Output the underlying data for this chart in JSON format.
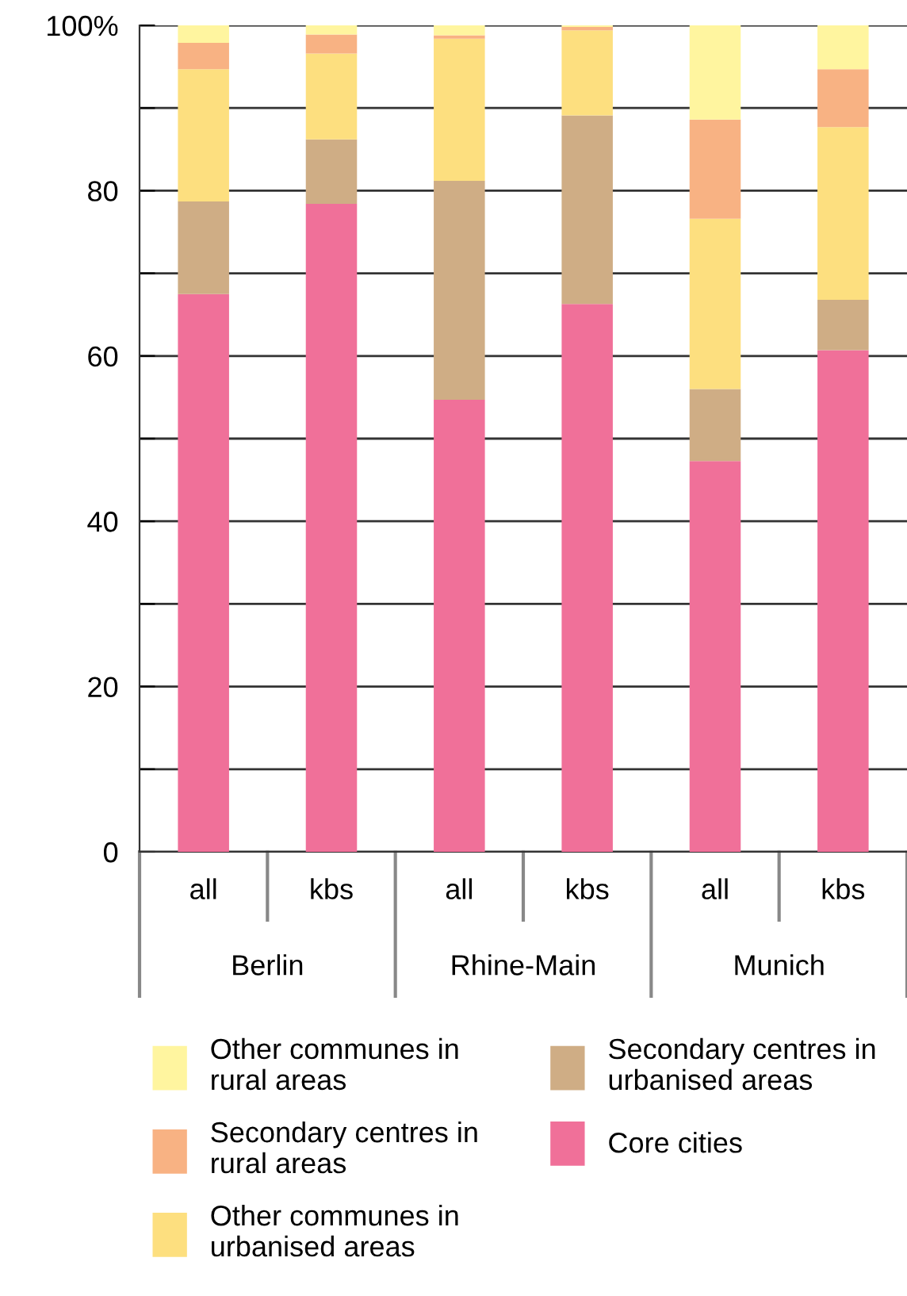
{
  "chart_data": {
    "type": "bar",
    "stacked": true,
    "categories": [
      "all",
      "kbs",
      "all",
      "kbs",
      "all",
      "kbs"
    ],
    "annotations": [
      "Berlin",
      "Rhine-Main",
      "Munich"
    ],
    "series": [
      {
        "name": "Core cities",
        "color": "#f07099",
        "values": [
          67.5,
          78.4,
          54.7,
          66.3,
          47.3,
          60.7
        ]
      },
      {
        "name": "Secondary centres in urbanised areas",
        "color": "#cfad85",
        "values": [
          11.2,
          7.8,
          26.5,
          22.8,
          8.7,
          6.1
        ]
      },
      {
        "name": "Other communes in urbanised areas",
        "color": "#fddf7f",
        "values": [
          16,
          10.4,
          17.2,
          10.3,
          20.6,
          20.9
        ]
      },
      {
        "name": "Secondary centres in rural areas",
        "color": "#f8b283",
        "values": [
          3.2,
          2.3,
          0.4,
          0.4,
          12,
          7
        ]
      },
      {
        "name": "Other communes in rural areas",
        "color": "#fff59f",
        "values": [
          2.1,
          1.1,
          1.2,
          0.2,
          11.4,
          5.3
        ]
      }
    ],
    "ylim": [
      0,
      100
    ],
    "yticks": [
      0,
      {
        "value": 10,
        "label": null
      },
      20,
      {
        "value": 30,
        "label": null
      },
      40,
      {
        "value": 50,
        "label": null
      },
      60,
      {
        "value": 70,
        "label": null
      },
      80,
      {
        "value": 90,
        "label": null
      },
      {
        "value": 100,
        "label": "100%"
      }
    ],
    "grid": "y",
    "legend": "bottom"
  }
}
